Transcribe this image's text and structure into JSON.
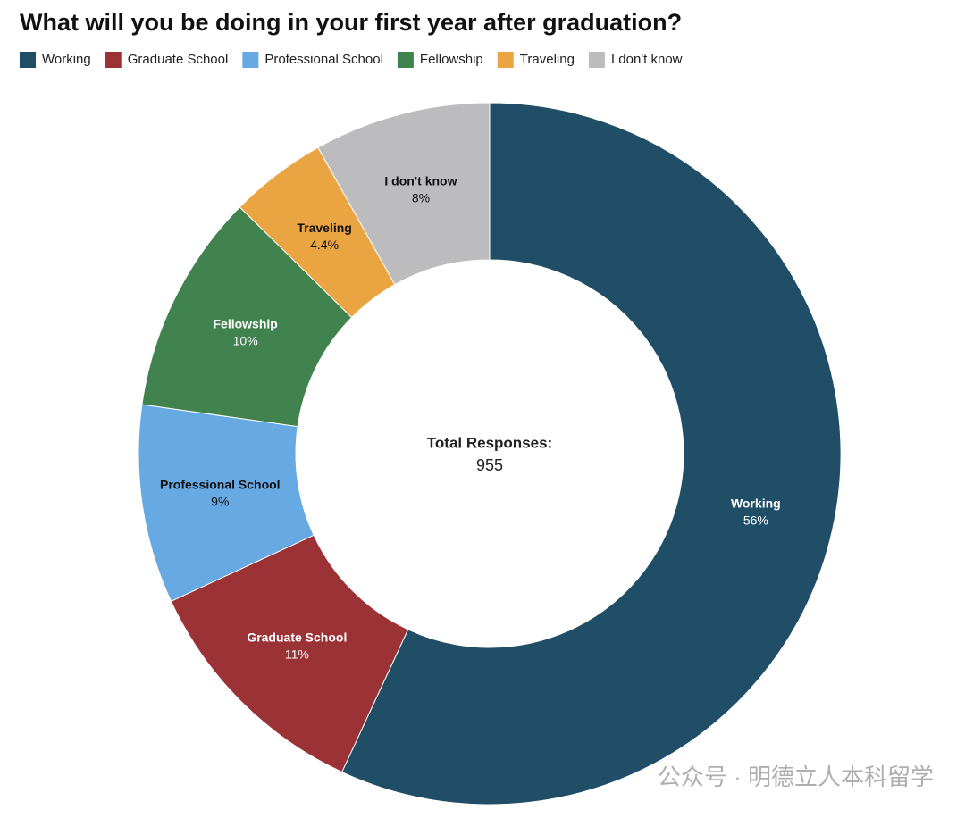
{
  "chart_data": {
    "type": "donut",
    "title": "What will you be doing in your first year after graduation?",
    "categories": [
      "Working",
      "Graduate School",
      "Professional School",
      "Fellowship",
      "Traveling",
      "I don't know"
    ],
    "values": [
      56,
      11,
      9,
      10,
      4.4,
      8
    ],
    "value_labels": [
      "56%",
      "11%",
      "9%",
      "10%",
      "4.4%",
      "8%"
    ],
    "colors": [
      "#1f4e66",
      "#9b3235",
      "#67a9e3",
      "#41834e",
      "#eba442",
      "#bcbcbe"
    ],
    "legend": "top",
    "center_label": "Total Responses:",
    "total": 955,
    "watermark": "公众号 · 明德立人本科留学"
  }
}
